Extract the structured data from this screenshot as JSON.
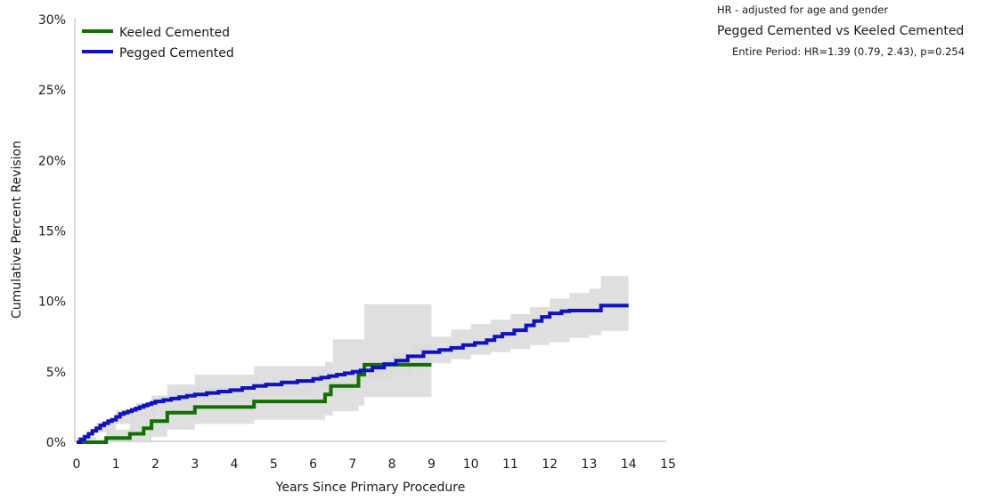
{
  "annotations": {
    "note": "HR - adjusted for age and gender",
    "comparison": "Pegged Cemented vs Keeled Cemented",
    "stat": "Entire Period: HR=1.39 (0.79, 2.43), p=0.254"
  },
  "colors": {
    "keeled": "#117000",
    "pegged": "#1111c4",
    "ci_band": "#dcdcdc",
    "axis": "#d9d9d9"
  },
  "chart_data": {
    "type": "line",
    "xlabel": "Years Since Primary Procedure",
    "ylabel": "Cumulative Percent Revision",
    "xlim": [
      0,
      15
    ],
    "ylim": [
      0,
      30
    ],
    "x_ticks": [
      "0",
      "1",
      "2",
      "3",
      "4",
      "5",
      "6",
      "7",
      "8",
      "9",
      "10",
      "11",
      "12",
      "13",
      "14",
      "15"
    ],
    "y_ticks": [
      "0%",
      "5%",
      "10%",
      "15%",
      "20%",
      "25%",
      "30%"
    ],
    "grid": false,
    "legend_position": "top-left",
    "series": [
      {
        "name": "Keeled Cemented",
        "color": "#117000",
        "step": true,
        "x": [
          0,
          0.75,
          1.35,
          1.7,
          1.9,
          2.3,
          3.0,
          4.5,
          6.3,
          6.45,
          7.15,
          7.3,
          9.0
        ],
        "y": [
          0,
          0.3,
          0.6,
          1.0,
          1.5,
          2.1,
          2.5,
          2.9,
          3.4,
          4.0,
          4.8,
          5.5,
          5.5
        ],
        "ci_x": [
          0,
          0.75,
          1.35,
          1.9,
          2.3,
          3.0,
          4.5,
          6.3,
          6.5,
          7.15,
          7.3,
          9.0
        ],
        "ci_lower": [
          0,
          0,
          0.1,
          0.4,
          0.9,
          1.3,
          1.6,
          1.9,
          2.2,
          2.6,
          3.2,
          3.2
        ],
        "ci_upper": [
          0.2,
          0.9,
          2.0,
          3.3,
          4.1,
          4.8,
          5.4,
          5.7,
          7.3,
          7.3,
          9.8,
          9.8
        ]
      },
      {
        "name": "Pegged Cemented",
        "color": "#1111c4",
        "step": true,
        "x": [
          0,
          0.1,
          0.2,
          0.3,
          0.4,
          0.5,
          0.6,
          0.7,
          0.8,
          0.9,
          1.0,
          1.1,
          1.2,
          1.3,
          1.4,
          1.5,
          1.6,
          1.7,
          1.8,
          1.9,
          2.0,
          2.2,
          2.4,
          2.6,
          2.8,
          3.0,
          3.3,
          3.6,
          3.9,
          4.2,
          4.5,
          4.8,
          5.2,
          5.6,
          6.0,
          6.2,
          6.4,
          6.6,
          6.8,
          7.0,
          7.2,
          7.5,
          7.8,
          8.1,
          8.4,
          8.8,
          9.2,
          9.5,
          9.8,
          10.1,
          10.4,
          10.6,
          10.8,
          11.1,
          11.4,
          11.6,
          11.8,
          12.0,
          12.3,
          12.5,
          13.0,
          13.3,
          14.0
        ],
        "y": [
          0,
          0.2,
          0.4,
          0.6,
          0.8,
          1.0,
          1.2,
          1.35,
          1.5,
          1.6,
          1.8,
          2.0,
          2.1,
          2.2,
          2.3,
          2.4,
          2.5,
          2.6,
          2.7,
          2.8,
          2.9,
          3.0,
          3.1,
          3.2,
          3.3,
          3.4,
          3.5,
          3.6,
          3.7,
          3.85,
          4.0,
          4.1,
          4.25,
          4.35,
          4.5,
          4.6,
          4.7,
          4.8,
          4.9,
          5.0,
          5.1,
          5.3,
          5.55,
          5.8,
          6.1,
          6.4,
          6.55,
          6.7,
          6.9,
          7.05,
          7.25,
          7.5,
          7.7,
          7.95,
          8.3,
          8.6,
          8.9,
          9.15,
          9.3,
          9.35,
          9.35,
          9.7,
          9.7
        ],
        "ci_x": [
          0,
          0.5,
          1.0,
          1.5,
          2.0,
          2.5,
          3.0,
          4.5,
          6.0,
          7.0,
          7.5,
          8.0,
          8.5,
          9.0,
          9.5,
          10.0,
          10.5,
          11.0,
          11.5,
          12.0,
          12.5,
          13.0,
          13.3,
          14.0
        ],
        "ci_lower": [
          0,
          0.7,
          1.3,
          1.8,
          2.2,
          2.5,
          2.8,
          3.3,
          3.7,
          4.2,
          4.5,
          4.8,
          5.2,
          5.6,
          5.9,
          6.2,
          6.4,
          6.6,
          6.9,
          7.1,
          7.4,
          7.6,
          7.9,
          7.9
        ],
        "ci_upper": [
          0.4,
          1.4,
          2.3,
          2.8,
          3.3,
          3.7,
          3.9,
          4.3,
          4.6,
          5.3,
          5.9,
          6.4,
          6.9,
          7.5,
          8.0,
          8.4,
          8.7,
          9.1,
          9.6,
          10.2,
          10.6,
          10.9,
          11.8,
          11.8
        ]
      }
    ]
  }
}
